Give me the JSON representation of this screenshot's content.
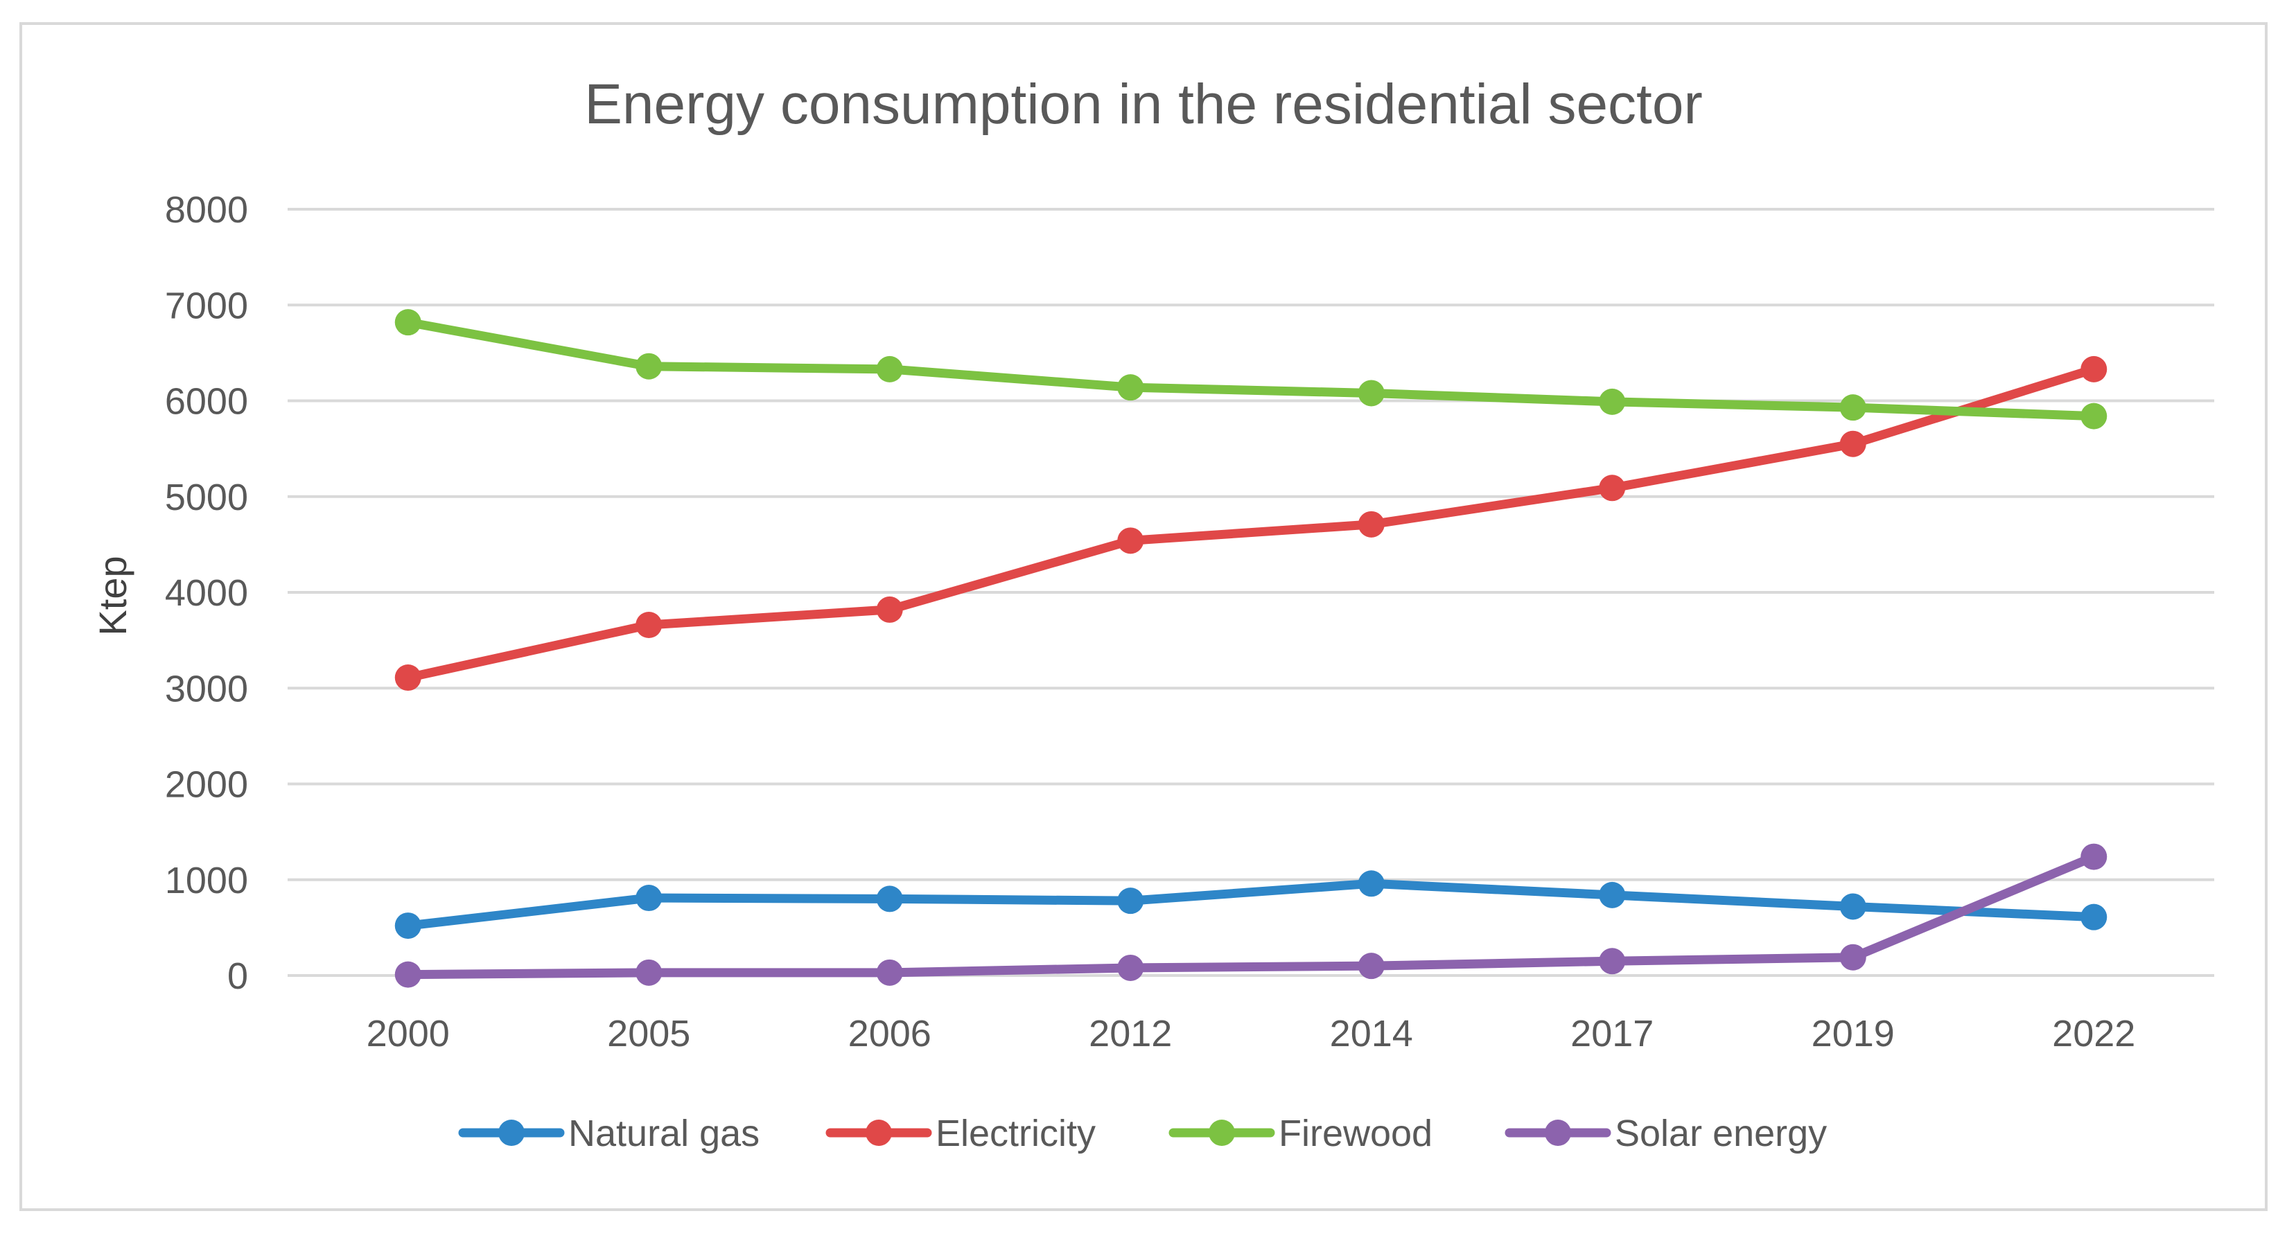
{
  "chart_data": {
    "type": "line",
    "title": "Energy consumption in the residential sector",
    "xlabel": "",
    "ylabel": "Ktep",
    "categories": [
      "2000",
      "2005",
      "2006",
      "2012",
      "2014",
      "2017",
      "2019",
      "2022"
    ],
    "ylim": [
      0,
      8000
    ],
    "yticks": [
      0,
      1000,
      2000,
      3000,
      4000,
      5000,
      6000,
      7000,
      8000
    ],
    "grid": true,
    "legend_position": "bottom",
    "series": [
      {
        "name": "Natural gas",
        "color": "#2E86C8",
        "values": [
          520,
          810,
          800,
          780,
          960,
          840,
          720,
          610
        ]
      },
      {
        "name": "Electricity",
        "color": "#E04848",
        "values": [
          3110,
          3660,
          3820,
          4540,
          4710,
          5090,
          5550,
          6330
        ]
      },
      {
        "name": "Firewood",
        "color": "#7CC242",
        "values": [
          6820,
          6360,
          6330,
          6140,
          6080,
          5990,
          5930,
          5840
        ]
      },
      {
        "name": "Solar energy",
        "color": "#8C63AD",
        "values": [
          10,
          30,
          30,
          80,
          100,
          150,
          190,
          1240
        ]
      }
    ]
  }
}
